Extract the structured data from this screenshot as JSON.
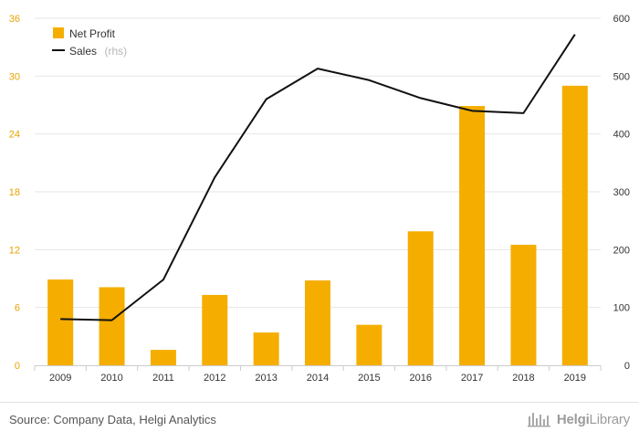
{
  "chart_data": {
    "type": "bar+line",
    "categories": [
      "2009",
      "2010",
      "2011",
      "2012",
      "2013",
      "2014",
      "2015",
      "2016",
      "2017",
      "2018",
      "2019"
    ],
    "series": [
      {
        "name": "Net Profit",
        "kind": "bar",
        "axis": "left",
        "color": "#f5ae00",
        "values": [
          8.9,
          8.1,
          1.6,
          7.3,
          3.4,
          8.8,
          4.2,
          13.9,
          26.9,
          12.5,
          29.0
        ]
      },
      {
        "name": "Sales",
        "name_suffix": "(rhs)",
        "kind": "line",
        "axis": "right",
        "color": "#111111",
        "values": [
          80,
          78,
          148,
          325,
          460,
          513,
          493,
          462,
          440,
          436,
          572
        ]
      }
    ],
    "y_left": {
      "ylim": [
        0,
        36
      ],
      "ticks": [
        "0",
        "6",
        "12",
        "18",
        "24",
        "30",
        "36"
      ]
    },
    "y_right": {
      "ylim": [
        0,
        600
      ],
      "ticks": [
        "0",
        "100",
        "200",
        "300",
        "400",
        "500",
        "600"
      ]
    },
    "legend_position": "top-left",
    "grid": true
  },
  "footer": {
    "source": "Source: Company Data, Helgi Analytics",
    "brand_prefix": "Helgi",
    "brand_suffix": "Library",
    "brand_icon": "helgi-library-logo-icon"
  }
}
